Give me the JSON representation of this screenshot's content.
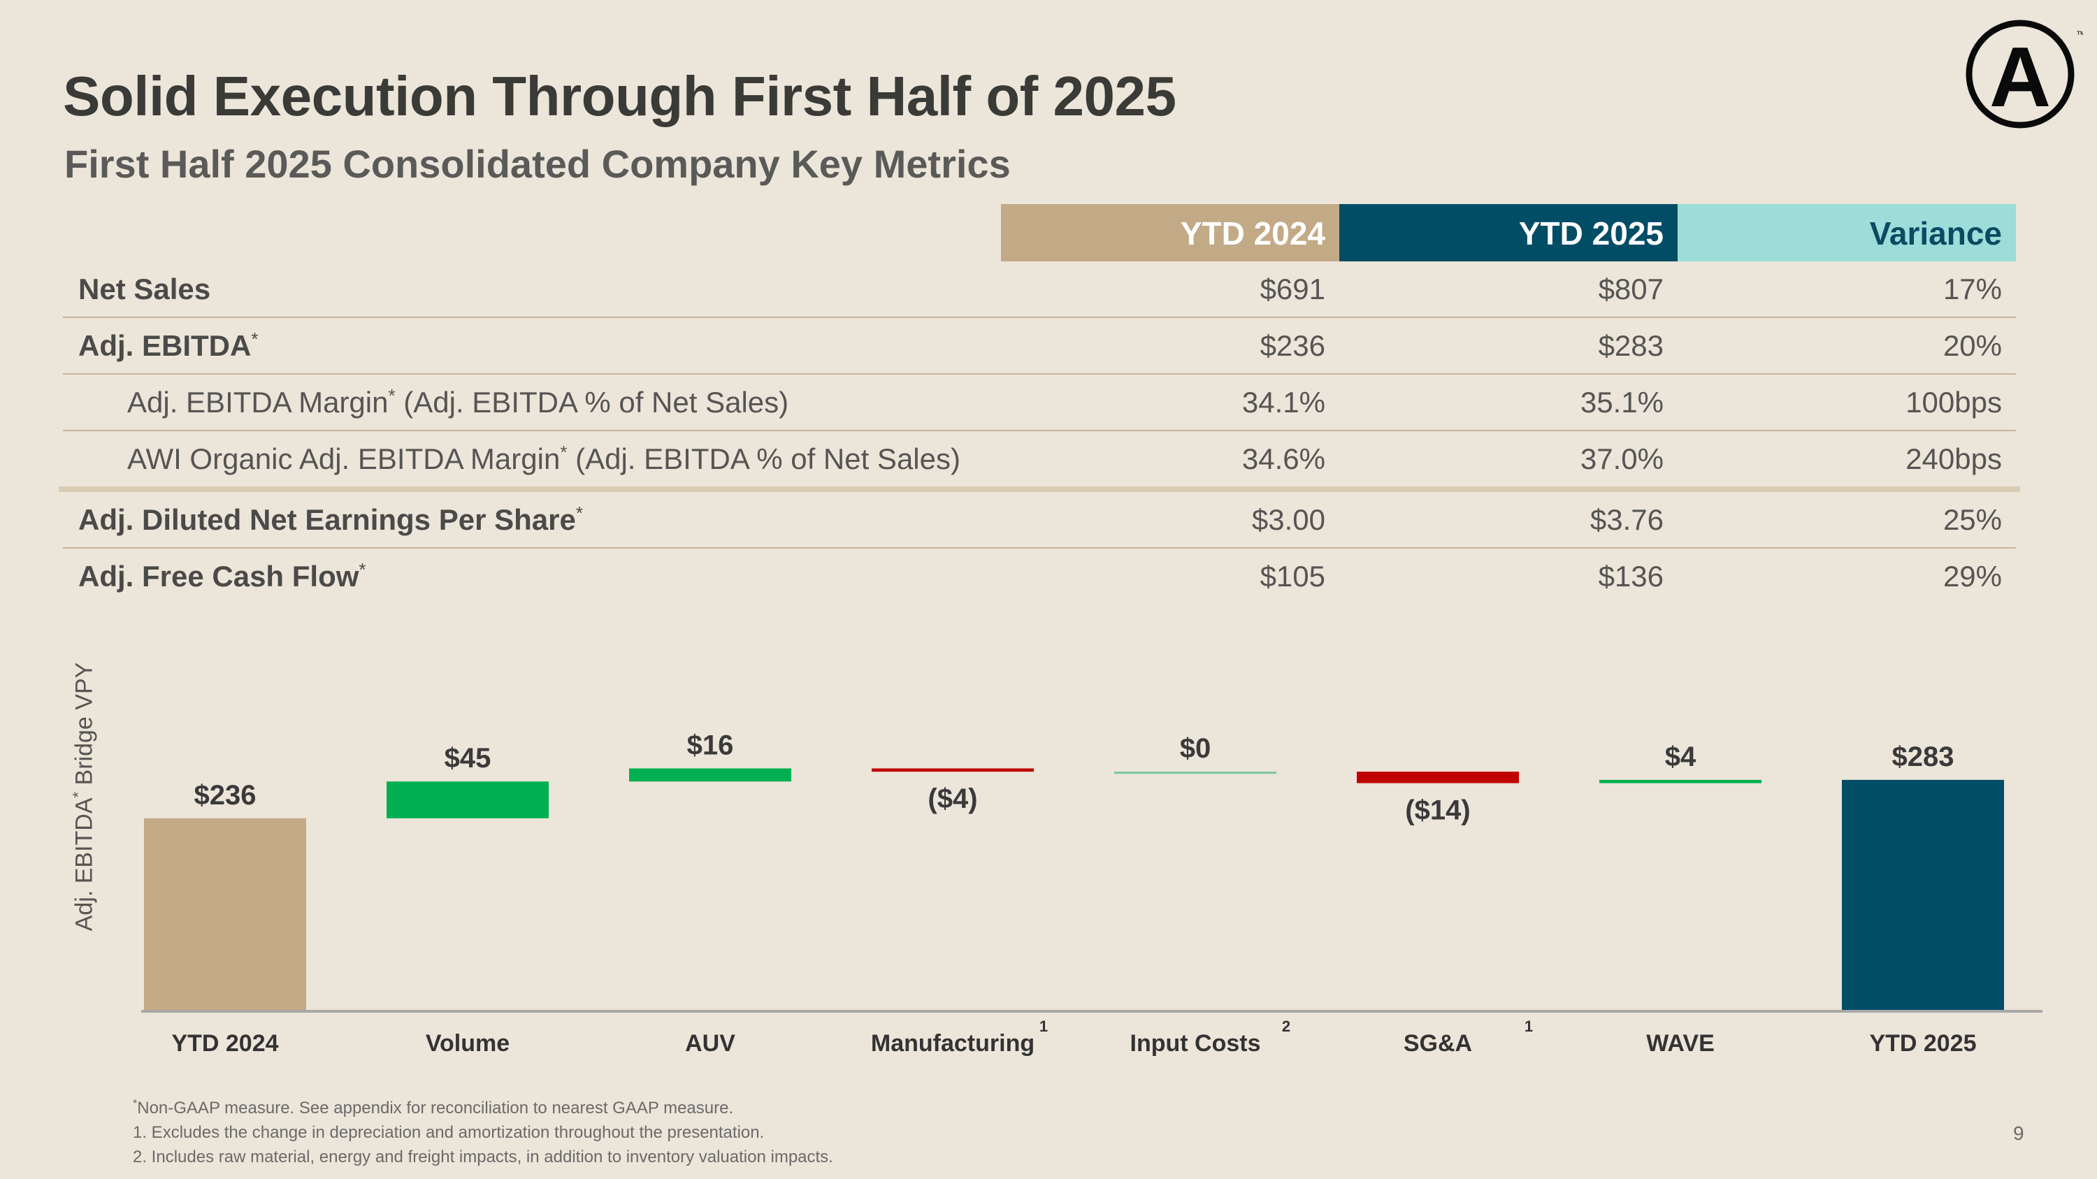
{
  "slide": {
    "title": "Solid Execution Through First Half of 2025",
    "subtitle": "First Half 2025 Consolidated Company Key Metrics",
    "logo_letter": "A",
    "logo_mark": "™",
    "page_number": "9"
  },
  "metrics_table": {
    "headers": [
      "YTD 2024",
      "YTD 2025",
      "Variance"
    ],
    "header_colors": [
      "#C3AA86",
      "#024D66",
      "#9DDDD9"
    ],
    "rows": [
      {
        "label": "Net Sales",
        "sup": "",
        "rest": "",
        "values": [
          "$691",
          "$807",
          "17%"
        ]
      },
      {
        "label": "Adj. EBITDA",
        "sup": "*",
        "rest": "",
        "values": [
          "$236",
          "$283",
          "20%"
        ]
      },
      {
        "label": "Adj. EBITDA Margin",
        "sup": "*",
        "rest": " (Adj. EBITDA % of Net Sales)",
        "values": [
          "34.1%",
          "35.1%",
          "100bps"
        ]
      },
      {
        "label": "AWI Organic Adj. EBITDA Margin",
        "sup": "*",
        "rest": " (Adj. EBITDA % of Net Sales)",
        "values": [
          "34.6%",
          "37.0%",
          "240bps"
        ]
      },
      {
        "label": "Adj. Diluted Net Earnings Per Share",
        "sup": "*",
        "rest": "",
        "values": [
          "$3.00",
          "$3.76",
          "25%"
        ]
      },
      {
        "label": "Adj. Free Cash Flow",
        "sup": "*",
        "rest": "",
        "values": [
          "$105",
          "$136",
          "29%"
        ]
      }
    ]
  },
  "chart_data": {
    "type": "bar",
    "subtype": "waterfall",
    "ylabel": "Adj. EBITDA",
    "ylabel_sup": "*",
    "ylabel_rest": " Bridge VPY",
    "categories": [
      "YTD 2024",
      "Volume",
      "AUV",
      "Manufacturing",
      "Input Costs",
      "SG&A",
      "WAVE",
      "YTD 2025"
    ],
    "category_footnotes": [
      "",
      "",
      "",
      "1",
      "2",
      "1",
      "",
      ""
    ],
    "values": [
      236,
      45,
      16,
      -4,
      0,
      -14,
      4,
      283
    ],
    "kinds": [
      "total",
      "delta",
      "delta",
      "delta",
      "delta",
      "delta",
      "delta",
      "total"
    ],
    "data_labels": [
      "$236",
      "$45",
      "$16",
      "($4)",
      "$0",
      "($14)",
      "$4",
      "$283"
    ],
    "colors": {
      "start": "#C3AA86",
      "increase": "#00B050",
      "decrease": "#C00000",
      "end": "#024D66",
      "zero": "#79C79A"
    }
  },
  "footnotes": {
    "star_mark": "*",
    "star": "Non-GAAP measure. See appendix for reconciliation to nearest GAAP measure.",
    "items": [
      "1. Excludes the change in depreciation and amortization throughout the presentation.",
      "2. Includes raw material, energy and freight impacts, in addition to inventory valuation impacts."
    ]
  }
}
